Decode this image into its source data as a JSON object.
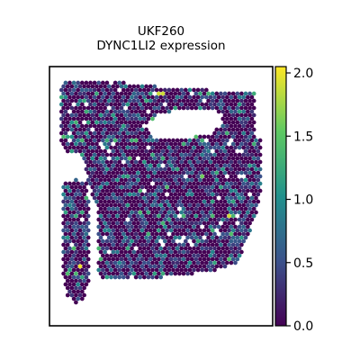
{
  "chart_data": {
    "type": "scatter",
    "title": "UKF260",
    "subtitle": "DYNC1LI2 expression",
    "xlabel": "",
    "ylabel": "",
    "colorbar": {
      "colormap": "viridis",
      "range": [
        0.0,
        2.05
      ],
      "ticks": [
        0.0,
        0.5,
        1.0,
        1.5,
        2.0
      ],
      "tick_labels": [
        "0.0",
        "0.5",
        "1.0",
        "1.5",
        "2.0"
      ],
      "colors": [
        "#440154",
        "#3b528b",
        "#21918c",
        "#5ec962",
        "#fde725"
      ]
    },
    "background_value": 0.0,
    "hotspots": [
      {
        "x": 0.14,
        "y": 0.77,
        "value": 2.0
      },
      {
        "x": 0.5,
        "y": 0.1,
        "value": 1.9
      },
      {
        "x": 0.8,
        "y": 0.58,
        "value": 1.9
      },
      {
        "x": 0.68,
        "y": 0.42,
        "value": 1.6
      },
      {
        "x": 0.4,
        "y": 0.56,
        "value": 1.4
      },
      {
        "x": 0.6,
        "y": 0.3,
        "value": 1.3
      }
    ],
    "grid": false,
    "axes_ticks": false
  }
}
